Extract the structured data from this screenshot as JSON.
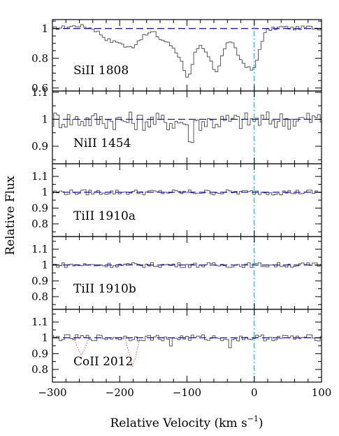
{
  "chart_data": {
    "type": "line",
    "xlabel": "Relative Velocity (km s",
    "xlabel_sup": "−1",
    "xlabel_close": ")",
    "ylabel": "Relative Flux",
    "xlim": [
      -300,
      100
    ],
    "x_ticks": [
      -300,
      -200,
      -100,
      0,
      100
    ],
    "x_tick_labels": [
      "−300",
      "−200",
      "−100",
      "0",
      "100"
    ],
    "x_step": 4,
    "reference_velocity": 0,
    "colors": {
      "spectrum": "#555555",
      "continuum": "#0000cc",
      "zero_velocity": "#00cccc",
      "contamination": "#dd5555"
    },
    "panels": [
      {
        "label": "SiII 1808",
        "ylim": [
          0.58,
          1.06
        ],
        "y_ticks": [
          0.6,
          0.8,
          1.0
        ],
        "y_tick_labels": [
          "0.6",
          "0.8",
          "1"
        ],
        "y_minor": [
          0.65,
          0.7,
          0.75,
          0.85,
          0.9,
          0.95,
          1.05
        ],
        "flux": [
          {
            "x": -300,
            "y": 1.0
          },
          {
            "x": -280,
            "y": 1.01
          },
          {
            "x": -260,
            "y": 1.02
          },
          {
            "x": -240,
            "y": 1.0
          },
          {
            "x": -230,
            "y": 0.97
          },
          {
            "x": -220,
            "y": 0.93
          },
          {
            "x": -210,
            "y": 0.91
          },
          {
            "x": -200,
            "y": 0.91
          },
          {
            "x": -190,
            "y": 0.87
          },
          {
            "x": -180,
            "y": 0.88
          },
          {
            "x": -170,
            "y": 0.93
          },
          {
            "x": -160,
            "y": 0.96
          },
          {
            "x": -150,
            "y": 0.98
          },
          {
            "x": -140,
            "y": 0.93
          },
          {
            "x": -130,
            "y": 0.91
          },
          {
            "x": -120,
            "y": 0.87
          },
          {
            "x": -110,
            "y": 0.8
          },
          {
            "x": -100,
            "y": 0.68
          },
          {
            "x": -95,
            "y": 0.69
          },
          {
            "x": -88,
            "y": 0.83
          },
          {
            "x": -80,
            "y": 0.88
          },
          {
            "x": -70,
            "y": 0.83
          },
          {
            "x": -60,
            "y": 0.73
          },
          {
            "x": -55,
            "y": 0.71
          },
          {
            "x": -48,
            "y": 0.82
          },
          {
            "x": -40,
            "y": 0.9
          },
          {
            "x": -35,
            "y": 0.92
          },
          {
            "x": -28,
            "y": 0.86
          },
          {
            "x": -20,
            "y": 0.79
          },
          {
            "x": -10,
            "y": 0.74
          },
          {
            "x": -5,
            "y": 0.72
          },
          {
            "x": 0,
            "y": 0.73
          },
          {
            "x": 5,
            "y": 0.8
          },
          {
            "x": 10,
            "y": 0.9
          },
          {
            "x": 15,
            "y": 0.96
          },
          {
            "x": 20,
            "y": 0.99
          },
          {
            "x": 40,
            "y": 1.01
          },
          {
            "x": 60,
            "y": 1.0
          },
          {
            "x": 80,
            "y": 1.01
          },
          {
            "x": 100,
            "y": 1.0
          }
        ],
        "noise": 0.012
      },
      {
        "label": "NiII 1454",
        "ylim": [
          0.835,
          1.105
        ],
        "y_ticks": [
          0.9,
          1.0,
          1.1
        ],
        "y_tick_labels": [
          "0.9",
          "1",
          "1.1"
        ],
        "y_minor": [
          0.85,
          0.95,
          1.05
        ],
        "flux": [
          {
            "x": -300,
            "y": 1.0
          },
          {
            "x": -100,
            "y": 0.99
          },
          {
            "x": -95,
            "y": 0.87
          },
          {
            "x": -90,
            "y": 0.99
          },
          {
            "x": 100,
            "y": 1.0
          }
        ],
        "noise": 0.035
      },
      {
        "label": "TiII 1910a",
        "ylim": [
          0.72,
          1.18
        ],
        "y_ticks": [
          0.8,
          0.9,
          1.0,
          1.1
        ],
        "y_tick_labels": [
          "0.8",
          "0.9",
          "1",
          "1.1"
        ],
        "y_minor": [
          0.75,
          0.85,
          0.95,
          1.05,
          1.15
        ],
        "flux": [
          {
            "x": -300,
            "y": 1.0
          },
          {
            "x": 100,
            "y": 1.0
          }
        ],
        "noise": 0.017
      },
      {
        "label": "TiII 1910b",
        "ylim": [
          0.72,
          1.18
        ],
        "y_ticks": [
          0.8,
          0.9,
          1.0,
          1.1
        ],
        "y_tick_labels": [
          "0.8",
          "0.9",
          "1",
          "1.1"
        ],
        "y_minor": [
          0.75,
          0.85,
          0.95,
          1.05,
          1.15
        ],
        "flux": [
          {
            "x": -300,
            "y": 1.0
          },
          {
            "x": 100,
            "y": 1.0
          }
        ],
        "noise": 0.016
      },
      {
        "label": "CoII 2012",
        "ylim": [
          0.72,
          1.18
        ],
        "y_ticks": [
          0.8,
          0.9,
          1.0,
          1.1
        ],
        "y_tick_labels": [
          "0.8",
          "0.9",
          "1",
          "1.1"
        ],
        "y_minor": [
          0.75,
          0.85,
          0.95,
          1.05,
          1.15
        ],
        "flux": [
          {
            "x": -300,
            "y": 1.0
          },
          {
            "x": -130,
            "y": 1.0
          },
          {
            "x": -125,
            "y": 0.94
          },
          {
            "x": -120,
            "y": 1.0
          },
          {
            "x": -40,
            "y": 1.0
          },
          {
            "x": -35,
            "y": 0.93
          },
          {
            "x": -30,
            "y": 1.0
          },
          {
            "x": 100,
            "y": 1.0
          }
        ],
        "noise": 0.02,
        "contamination": [
          {
            "x": -268,
            "y": 1.0
          },
          {
            "x": -262,
            "y": 0.93
          },
          {
            "x": -257,
            "y": 0.89
          },
          {
            "x": -252,
            "y": 0.93
          },
          {
            "x": -246,
            "y": 1.0
          },
          {
            "x": -192,
            "y": 1.0
          },
          {
            "x": -186,
            "y": 0.9
          },
          {
            "x": -181,
            "y": 0.82
          },
          {
            "x": -176,
            "y": 0.88
          },
          {
            "x": -170,
            "y": 1.0
          }
        ]
      }
    ]
  }
}
